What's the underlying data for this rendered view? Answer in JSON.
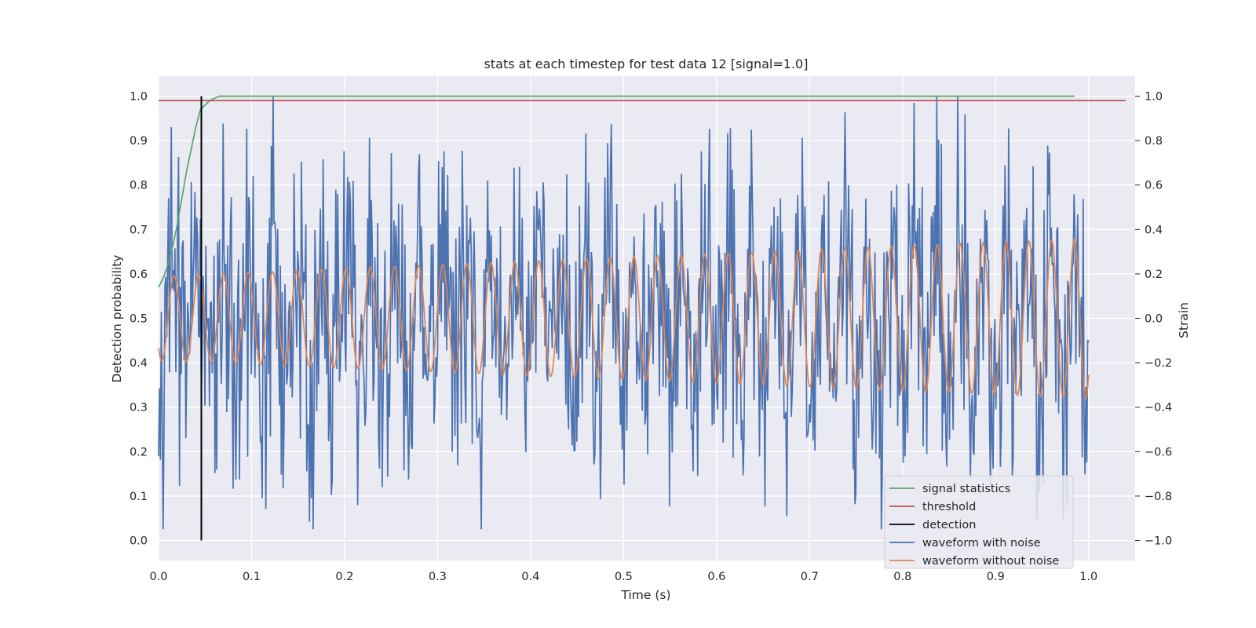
{
  "chart_data": {
    "type": "line",
    "title": "stats at each timestep for test data 12 [signal=1.0]",
    "xlabel": "Time (s)",
    "ylabel": "Detection probability",
    "y2label": "Strain",
    "xlim": [
      0.0,
      1.05
    ],
    "ylim": [
      -0.045,
      1.045
    ],
    "y2lim": [
      -1.09,
      1.09
    ],
    "grid": true,
    "legend_position": "lower right",
    "x_ticks": [
      "0.0",
      "0.1",
      "0.2",
      "0.3",
      "0.4",
      "0.5",
      "0.6",
      "0.7",
      "0.8",
      "0.9",
      "1.0"
    ],
    "y_ticks": [
      "0.0",
      "0.1",
      "0.2",
      "0.3",
      "0.4",
      "0.5",
      "0.6",
      "0.7",
      "0.8",
      "0.9",
      "1.0"
    ],
    "y2_ticks": [
      "−1.0",
      "−0.8",
      "−0.6",
      "−0.4",
      "−0.2",
      "0.0",
      "0.2",
      "0.4",
      "0.6",
      "0.8",
      "1.0"
    ],
    "colors": {
      "signal_statistics": "#55a868",
      "threshold": "#c44e52",
      "detection": "#000000",
      "waveform_with_noise": "#4c72b0",
      "waveform_without_noise": "#dd8452",
      "plot_background": "#eaeaf2",
      "grid": "#ffffff"
    },
    "series": [
      {
        "name": "signal statistics",
        "axis": "left",
        "x": [
          0.0,
          0.005,
          0.01,
          0.015,
          0.02,
          0.025,
          0.03,
          0.035,
          0.04,
          0.045,
          0.05,
          0.055,
          0.06,
          0.065,
          0.07,
          0.08,
          0.1,
          0.2,
          0.4,
          0.6,
          0.8,
          0.985
        ],
        "y": [
          0.57,
          0.59,
          0.62,
          0.66,
          0.71,
          0.77,
          0.83,
          0.88,
          0.93,
          0.97,
          0.98,
          0.99,
          0.995,
          1.0,
          1.0,
          1.0,
          1.0,
          1.0,
          1.0,
          1.0,
          1.0,
          1.0
        ]
      },
      {
        "name": "threshold",
        "axis": "left",
        "x": [
          0.0,
          1.04
        ],
        "y": [
          0.99,
          0.99
        ]
      },
      {
        "name": "detection",
        "axis": "left",
        "x": [
          0.046,
          0.046
        ],
        "y": [
          0.0,
          1.0
        ]
      },
      {
        "name": "waveform with noise",
        "axis": "right",
        "description": "noisy strain samples, amplitude roughly -0.95 to 1.0 around zero",
        "amplitude_range": [
          -0.95,
          1.0
        ]
      },
      {
        "name": "waveform without noise",
        "axis": "right",
        "description": "chirp sinusoid, about 41 cycles over 0 to 1.0 s, amplitude growing from 0.19 to 0.36",
        "amplitude_start": 0.19,
        "amplitude_end": 0.36,
        "cycles": 41
      }
    ]
  }
}
